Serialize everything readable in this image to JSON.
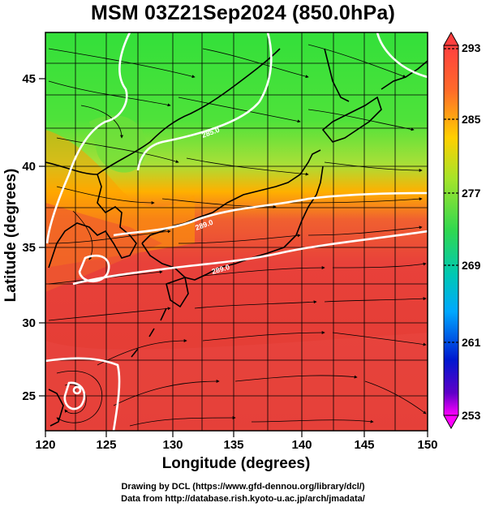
{
  "title": "MSM 03Z21Sep2024 (850.0hPa)",
  "x_axis": {
    "label": "Longitude (degrees)",
    "ticks": [
      "120",
      "125",
      "130",
      "135",
      "140",
      "145",
      "150"
    ]
  },
  "y_axis": {
    "label": "Latitude  (degrees)",
    "ticks": [
      "25",
      "30",
      "35",
      "40",
      "45"
    ]
  },
  "colorbar": {
    "labels": [
      "293",
      "285",
      "277",
      "269",
      "261",
      "253"
    ],
    "colors": [
      "#ff3f3f",
      "#ff7f1f",
      "#ffd700",
      "#5fe11f",
      "#00c8a0",
      "#00bfff",
      "#0000c8",
      "#ff00ff"
    ]
  },
  "contour_labels": [
    "285.0",
    "289.0",
    "289.0"
  ],
  "credits": {
    "line1": "Drawing by DCL (https://www.gfd-dennou.org/library/dcl/)",
    "line2": "Data from http://database.rish.kyoto-u.ac.jp/arch/jmadata/"
  },
  "colors": {
    "warm": "#e8413a",
    "mid": "#ffb400",
    "cool": "#24d83a",
    "contour": "#ffffff",
    "coast": "#000000"
  }
}
